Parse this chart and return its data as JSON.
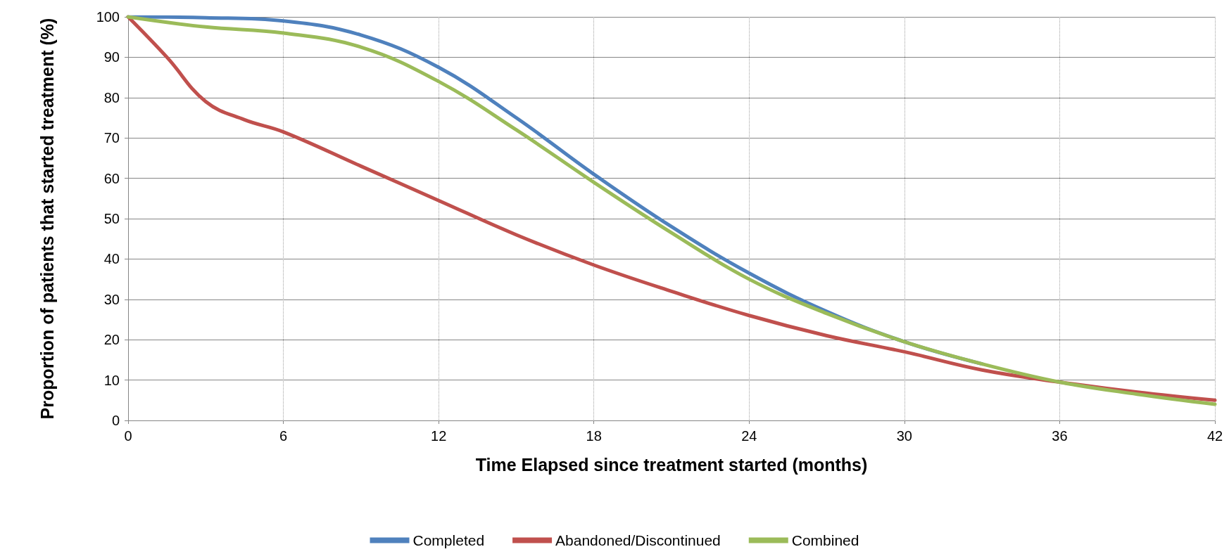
{
  "chart_data": {
    "type": "line",
    "xlabel": "Time Elapsed since treatment started (months)",
    "ylabel": "Proportion of patients that started treatment (%)",
    "x": [
      0,
      3,
      6,
      9,
      12,
      15,
      18,
      21,
      24,
      27,
      30,
      33,
      36,
      39,
      42
    ],
    "series": [
      {
        "name": "Completed",
        "color": "#4f81bd",
        "values": [
          100,
          99.8,
          99,
          95.5,
          87.5,
          75,
          61,
          48,
          36.5,
          27,
          19.5,
          14,
          null,
          null,
          null
        ]
      },
      {
        "name": "Abandoned/Discontinued",
        "color": "#c0504d",
        "x": [
          0,
          1.5,
          3,
          4.5,
          6,
          9,
          12,
          15,
          18,
          21,
          24,
          27,
          30,
          33,
          36,
          39,
          42
        ],
        "values": [
          100,
          90,
          79,
          74.5,
          71.5,
          63,
          54.5,
          46,
          38.5,
          32,
          26,
          21,
          17,
          12.5,
          9.5,
          7,
          5
        ]
      },
      {
        "name": "Combined",
        "color": "#9bbb59",
        "values": [
          100,
          97.5,
          96,
          92.5,
          84,
          72,
          59,
          46.5,
          35,
          26.5,
          19.5,
          14,
          9.5,
          6.5,
          4
        ]
      }
    ],
    "xlim": [
      0,
      42
    ],
    "xticks": [
      0,
      6,
      12,
      18,
      24,
      30,
      36,
      42
    ],
    "ylim": [
      0,
      100
    ],
    "yticks": [
      0,
      10,
      20,
      30,
      40,
      50,
      60,
      70,
      80,
      90,
      100
    ],
    "grid": true,
    "legend": "bottom",
    "marker": "none",
    "line_style": "solid"
  }
}
